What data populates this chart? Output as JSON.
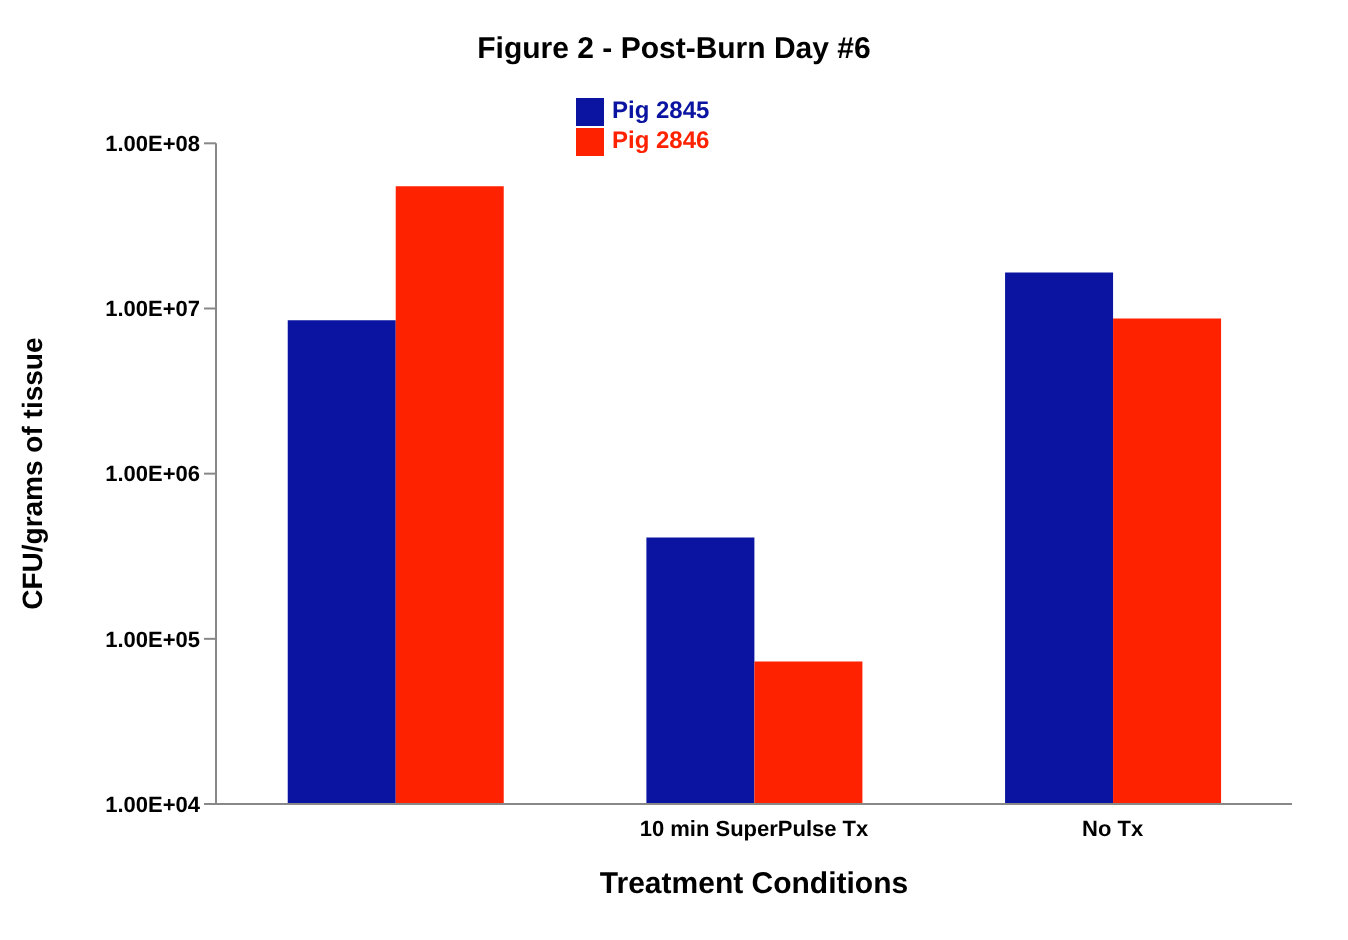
{
  "chart_data": {
    "type": "bar",
    "title": "Figure 2 - Post-Burn Day #6",
    "xlabel": "Treatment Conditions",
    "ylabel": "CFU/grams of tissue",
    "categories": [
      null,
      "10 min SuperPulse Tx",
      "No Tx"
    ],
    "series": [
      {
        "name": "Pig 2845",
        "color": "#0a14a0",
        "values": [
          8500000,
          410000,
          16500000
        ]
      },
      {
        "name": "Pig 2846",
        "color": "#ff2200",
        "values": [
          55000000,
          73000,
          8700000
        ]
      }
    ],
    "log": true,
    "ylim": [
      10000,
      100000000
    ],
    "yticks": [
      {
        "value": 10000,
        "label": "1.00E+04"
      },
      {
        "value": 100000,
        "label": "1.00E+05"
      },
      {
        "value": 1000000,
        "label": "1.00E+06"
      },
      {
        "value": 10000000,
        "label": "1.00E+07"
      },
      {
        "value": 100000000,
        "label": "1.00E+08"
      }
    ],
    "grid": false,
    "legend": "top"
  }
}
